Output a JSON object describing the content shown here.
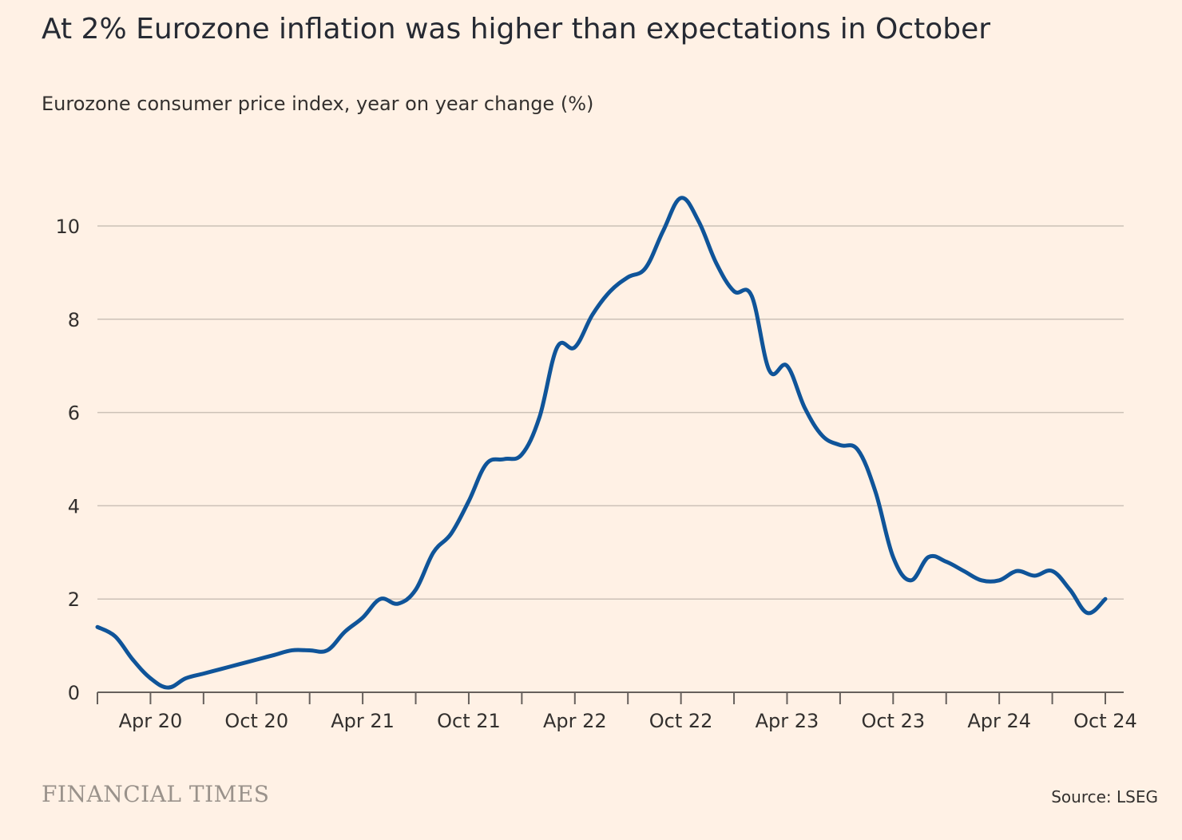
{
  "title": "At 2% Eurozone inflation was higher than expectations in October",
  "subtitle": "Eurozone consumer price index, year on year change (%)",
  "brand": "FINANCIAL TIMES",
  "source": "Source: LSEG",
  "colors": {
    "background": "#fff1e5",
    "line": "#0f5499",
    "grid": "#ccc1b7",
    "axis": "#66605c"
  },
  "chart_data": {
    "type": "line",
    "title": "At 2% Eurozone inflation was higher than expectations in October",
    "subtitle": "Eurozone consumer price index, year on year change (%)",
    "ylabel": "",
    "xlabel": "",
    "ylim": [
      0,
      10.8
    ],
    "yticks": [
      0,
      2,
      4,
      6,
      8,
      10
    ],
    "grid": true,
    "xticks": [
      "Apr 20",
      "Oct 20",
      "Apr 21",
      "Oct 21",
      "Apr 22",
      "Oct 22",
      "Apr 23",
      "Oct 23",
      "Apr 24",
      "Oct 24"
    ],
    "x_start": "Jan 20",
    "x_end": "Oct 24",
    "x": [
      "Jan 20",
      "Feb 20",
      "Mar 20",
      "Apr 20",
      "May 20",
      "Jun 20",
      "Jul 20",
      "Aug 20",
      "Sep 20",
      "Oct 20",
      "Nov 20",
      "Dec 20",
      "Jan 21",
      "Feb 21",
      "Mar 21",
      "Apr 21",
      "May 21",
      "Jun 21",
      "Jul 21",
      "Aug 21",
      "Sep 21",
      "Oct 21",
      "Nov 21",
      "Dec 21",
      "Jan 22",
      "Feb 22",
      "Mar 22",
      "Apr 22",
      "May 22",
      "Jun 22",
      "Jul 22",
      "Aug 22",
      "Sep 22",
      "Oct 22",
      "Nov 22",
      "Dec 22",
      "Jan 23",
      "Feb 23",
      "Mar 23",
      "Apr 23",
      "May 23",
      "Jun 23",
      "Jul 23",
      "Aug 23",
      "Sep 23",
      "Oct 23",
      "Nov 23",
      "Dec 23",
      "Jan 24",
      "Feb 24",
      "Mar 24",
      "Apr 24",
      "May 24",
      "Jun 24",
      "Jul 24",
      "Aug 24",
      "Sep 24",
      "Oct 24"
    ],
    "series": [
      {
        "values": [
          1.4,
          1.2,
          0.7,
          0.3,
          0.1,
          0.3,
          0.4,
          0.5,
          0.6,
          0.7,
          0.8,
          0.9,
          0.9,
          0.9,
          1.3,
          1.6,
          2.0,
          1.9,
          2.2,
          3.0,
          3.4,
          4.1,
          4.9,
          5.0,
          5.1,
          5.9,
          7.4,
          7.4,
          8.1,
          8.6,
          8.9,
          9.1,
          9.9,
          10.6,
          10.1,
          9.2,
          8.6,
          8.5,
          6.9,
          7.0,
          6.1,
          5.5,
          5.3,
          5.2,
          4.3,
          2.9,
          2.4,
          2.9,
          2.8,
          2.6,
          2.4,
          2.4,
          2.6,
          2.5,
          2.6,
          2.2,
          1.7,
          2.0
        ]
      }
    ]
  }
}
